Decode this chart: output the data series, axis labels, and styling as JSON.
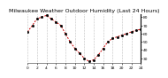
{
  "title": "Milwaukee Weather Outdoor Humidity (Last 24 Hours)",
  "x_values": [
    0,
    1,
    2,
    3,
    4,
    5,
    6,
    7,
    8,
    9,
    10,
    11,
    12,
    13,
    14,
    15,
    16,
    17,
    18,
    19,
    20,
    21,
    22,
    23,
    24
  ],
  "y_values": [
    62,
    70,
    78,
    80,
    82,
    78,
    74,
    70,
    60,
    50,
    42,
    36,
    30,
    26,
    28,
    34,
    42,
    50,
    54,
    56,
    58,
    60,
    62,
    64,
    65
  ],
  "line_color": "#cc0000",
  "marker_color": "#000000",
  "bg_color": "#ffffff",
  "grid_color": "#888888",
  "ylim": [
    24,
    84
  ],
  "ytick_values": [
    30,
    40,
    50,
    60,
    70,
    80
  ],
  "ytick_labels": [
    "30",
    "40",
    "50",
    "60",
    "70",
    "80"
  ],
  "xtick_values": [
    0,
    2,
    4,
    6,
    8,
    10,
    12,
    14,
    16,
    18,
    20,
    22,
    24
  ],
  "title_fontsize": 4.5,
  "tick_fontsize": 3.2,
  "line_width": 0.7,
  "marker_size": 1.0
}
